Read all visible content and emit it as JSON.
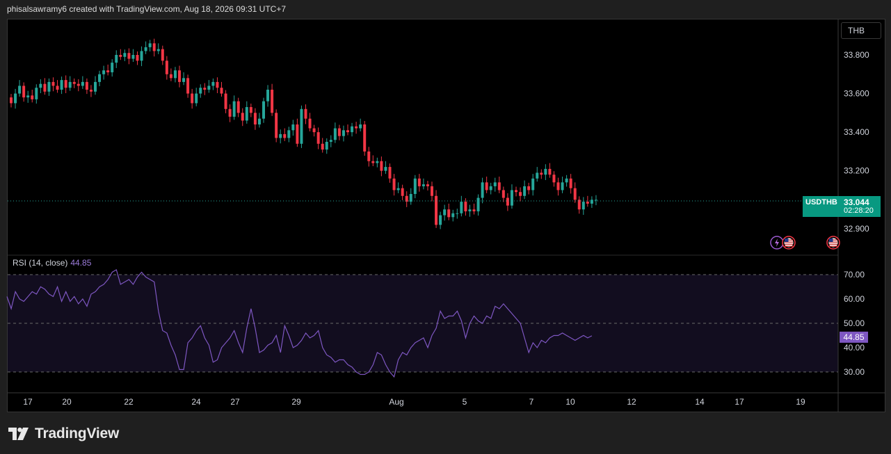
{
  "header": {
    "text": "phisalsawramy6 created with TradingView.com, Aug 18, 2026 09:31 UTC+7"
  },
  "currency_button": {
    "label": "THB"
  },
  "price_tag": {
    "symbol": "USDTHB",
    "value": "33.044",
    "countdown": "02:28:20"
  },
  "rsi_panel": {
    "label": "RSI (14, close)",
    "value": "44.85"
  },
  "footer": {
    "brand": "TradingView"
  },
  "colors": {
    "up": "#26a69a",
    "down": "#f23645",
    "rsi_line": "#7e57c2",
    "rsi_band_fill": "#120d1f",
    "price_tag": "#089981",
    "background": "#000000"
  },
  "chart_data": [
    {
      "type": "candlestick",
      "symbol": "USDTHB",
      "currency": "THB",
      "y_ticks": [
        "33.800",
        "33.600",
        "33.400",
        "33.200",
        "32.900"
      ],
      "ylim": [
        32.82,
        33.93
      ],
      "last_price": 33.044,
      "x_ticks": [
        "17",
        "20",
        "22",
        "24",
        "27",
        "29",
        "Aug",
        "5",
        "7",
        "10",
        "12",
        "14",
        "17",
        "19"
      ],
      "closes": [
        33.55,
        33.6,
        33.64,
        33.58,
        33.59,
        33.57,
        33.63,
        33.65,
        33.61,
        33.66,
        33.64,
        33.62,
        33.67,
        33.63,
        33.66,
        33.65,
        33.64,
        33.66,
        33.62,
        33.61,
        33.66,
        33.7,
        33.72,
        33.71,
        33.76,
        33.8,
        33.79,
        33.81,
        33.78,
        33.8,
        33.77,
        33.82,
        33.84,
        33.86,
        33.82,
        33.83,
        33.77,
        33.7,
        33.68,
        33.72,
        33.66,
        33.68,
        33.6,
        33.55,
        33.6,
        33.63,
        33.62,
        33.64,
        33.66,
        33.63,
        33.6,
        33.52,
        33.48,
        33.56,
        33.5,
        33.46,
        33.53,
        33.5,
        33.44,
        33.47,
        33.56,
        33.62,
        33.5,
        33.37,
        33.39,
        33.37,
        33.41,
        33.44,
        33.34,
        33.52,
        33.47,
        33.42,
        33.4,
        33.34,
        33.31,
        33.35,
        33.36,
        33.42,
        33.38,
        33.41,
        33.4,
        33.43,
        33.42,
        33.44,
        33.3,
        33.25,
        33.24,
        33.25,
        33.2,
        33.22,
        33.16,
        33.1,
        33.11,
        33.07,
        33.04,
        33.08,
        33.16,
        33.12,
        33.13,
        33.12,
        33.07,
        32.92,
        32.97,
        33.0,
        32.96,
        32.98,
        32.98,
        33.04,
        32.99,
        33.0,
        32.99,
        33.06,
        33.14,
        33.1,
        33.12,
        33.14,
        33.1,
        33.06,
        33.02,
        33.1,
        33.09,
        33.07,
        33.12,
        33.1,
        33.16,
        33.19,
        33.18,
        33.21,
        33.18,
        33.14,
        33.1,
        33.14,
        33.16,
        33.11,
        33.05,
        33.0,
        33.04,
        33.03,
        33.05,
        33.05
      ]
    },
    {
      "type": "line",
      "title": "RSI (14, close)",
      "y_ticks": [
        70,
        60,
        50,
        40,
        30
      ],
      "ylim": [
        21.5,
        75
      ],
      "reference_lines": [
        70,
        50,
        30
      ],
      "last_value": 44.85,
      "values": [
        61,
        56,
        63,
        60,
        59,
        61,
        63,
        62,
        65,
        64,
        62,
        61,
        65,
        59,
        63,
        59,
        61,
        58,
        60,
        57,
        62,
        63,
        65,
        66,
        68,
        71,
        72,
        66,
        67,
        68,
        66,
        69,
        71,
        69,
        68,
        67,
        55,
        47,
        46,
        41,
        37,
        31,
        31,
        42,
        44,
        47,
        49,
        44,
        41,
        34,
        35,
        40,
        42,
        44,
        47,
        42,
        38,
        48,
        56,
        48,
        38,
        39,
        41,
        42,
        45,
        38,
        49,
        45,
        40,
        41,
        43,
        46,
        44,
        45,
        47,
        40,
        37,
        36,
        34,
        35,
        35,
        33,
        32,
        30,
        29,
        29,
        30,
        33,
        38,
        37,
        33,
        30,
        28,
        35,
        38,
        37,
        40,
        42,
        43,
        44,
        40,
        45,
        48,
        55,
        52,
        53,
        53,
        55,
        51,
        44,
        50,
        53,
        51,
        50,
        53,
        52,
        57,
        56,
        58,
        56,
        54,
        52,
        50,
        44,
        38,
        42,
        40,
        43,
        42,
        44,
        45,
        45,
        46,
        45,
        44,
        43,
        44,
        45,
        44,
        44.85
      ]
    }
  ]
}
